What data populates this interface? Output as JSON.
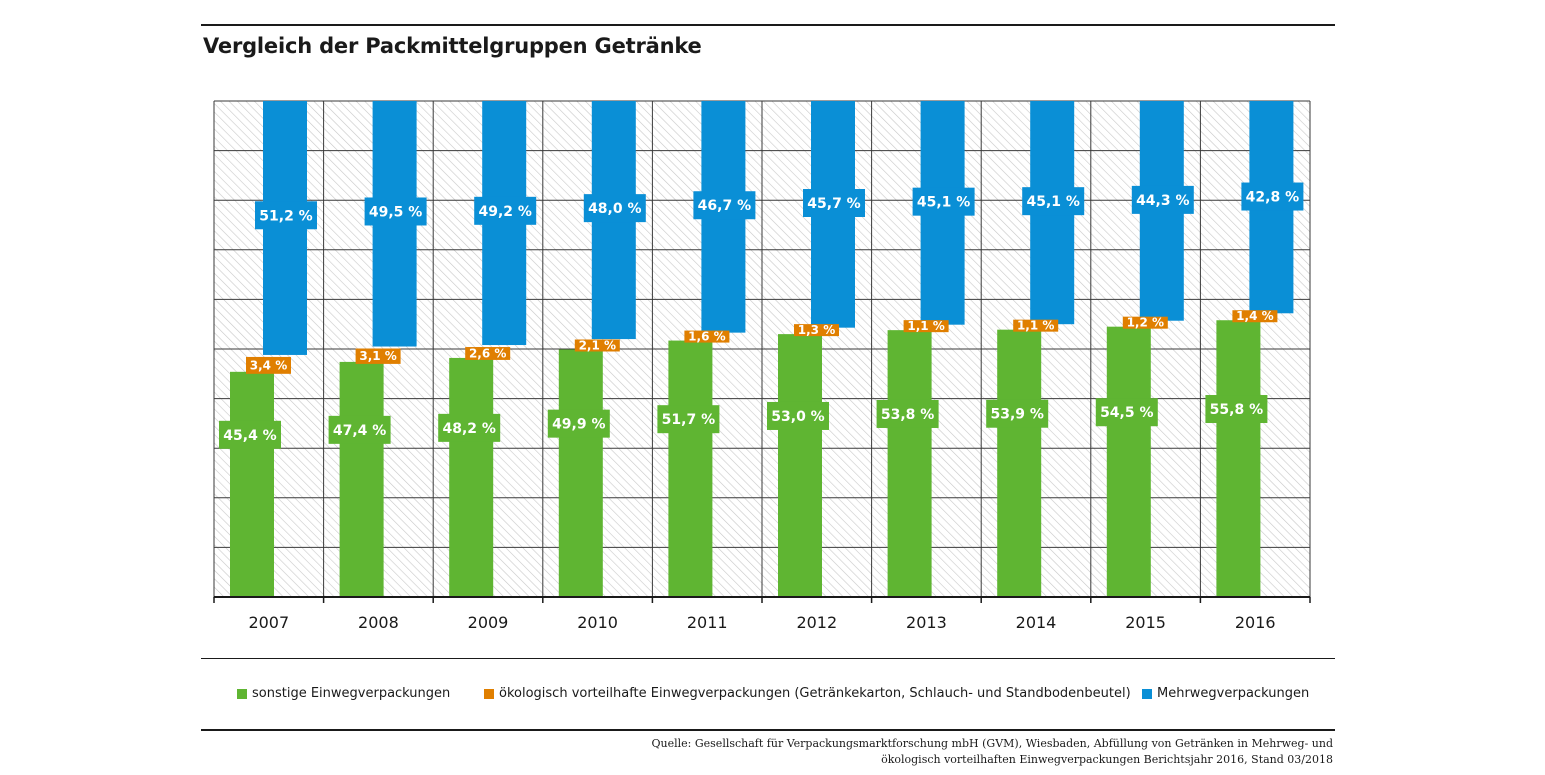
{
  "title": "Vergleich der Packmittelgruppen Getränke",
  "colors": {
    "green": "#5fb532",
    "orange": "#e07f00",
    "blue": "#0a8fd6",
    "hatch": "#c8c8c8",
    "grid": "#3a3a3a"
  },
  "legend": [
    {
      "label": "sonstige Einwegverpackungen",
      "color": "#5fb532"
    },
    {
      "label": "ökologisch vorteilhafte Einwegverpackungen (Getränkekarton, Schlauch- und Standbodenbeutel)",
      "color": "#e07f00"
    },
    {
      "label": "Mehrwegverpackungen",
      "color": "#0a8fd6"
    }
  ],
  "source": {
    "line1": "Quelle: Gesellschaft für Verpackungsmarktforschung mbH (GVM), Wiesbaden, Abfüllung von Getränken in Mehrweg- und",
    "line2": "ökologisch vorteilhaften Einwegverpackungen Berichtsjahr 2016, Stand 03/2018"
  },
  "chart_data": {
    "type": "bar",
    "stacked": true,
    "categories": [
      "2007",
      "2008",
      "2009",
      "2010",
      "2011",
      "2012",
      "2013",
      "2014",
      "2015",
      "2016"
    ],
    "series": [
      {
        "name": "sonstige Einwegverpackungen",
        "values": [
          45.4,
          47.4,
          48.2,
          49.9,
          51.7,
          53.0,
          53.8,
          53.9,
          54.5,
          55.8
        ],
        "labels": [
          "45,4 %",
          "47,4 %",
          "48,2 %",
          "49,9 %",
          "51,7 %",
          "53,0 %",
          "53,8 %",
          "53,9 %",
          "54,5 %",
          "55,8 %"
        ]
      },
      {
        "name": "ökologisch vorteilhafte Einwegverpackungen (Getränkekarton, Schlauch- und Standbodenbeutel)",
        "values": [
          3.4,
          3.1,
          2.6,
          2.1,
          1.6,
          1.3,
          1.1,
          1.1,
          1.2,
          1.4
        ],
        "labels": [
          "3,4 %",
          "3,1 %",
          "2,6 %",
          "2,1 %",
          "1,6 %",
          "1,3 %",
          "1,1 %",
          "1,1 %",
          "1,2 %",
          "1,4 %"
        ]
      },
      {
        "name": "Mehrwegverpackungen",
        "values": [
          51.2,
          49.5,
          49.2,
          48.0,
          46.7,
          45.7,
          45.1,
          45.1,
          44.3,
          42.8
        ],
        "labels": [
          "51,2 %",
          "49,5 %",
          "49,2 %",
          "48,0 %",
          "46,7 %",
          "45,7 %",
          "45,1 %",
          "45,1 %",
          "44,3 %",
          "42,8 %"
        ]
      }
    ],
    "ylim": [
      0,
      100
    ],
    "gridlines": 10,
    "grid": true,
    "legend_position": "bottom"
  }
}
